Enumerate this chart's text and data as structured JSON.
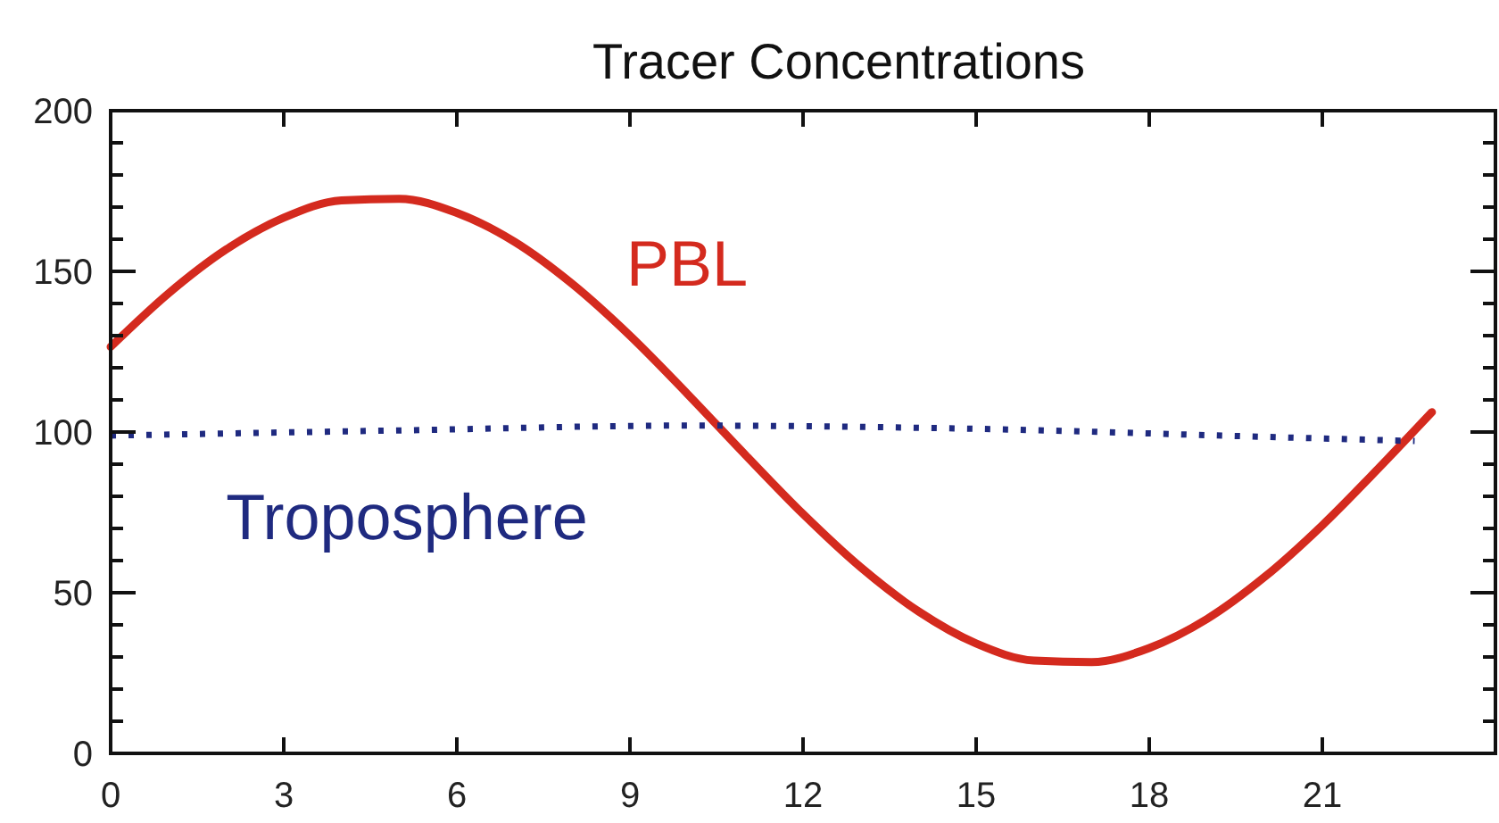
{
  "chart_data": {
    "type": "line",
    "title": "Tracer Concentrations",
    "xlim": [
      0,
      24
    ],
    "xticks": [
      0,
      3,
      6,
      9,
      12,
      15,
      18,
      21
    ],
    "ylim": [
      0,
      200
    ],
    "yticks": [
      0,
      {
        "value": 10,
        "label": null
      },
      {
        "value": 20,
        "label": null
      },
      {
        "value": 30,
        "label": null
      },
      {
        "value": 40,
        "label": null
      },
      50,
      {
        "value": 60,
        "label": null
      },
      {
        "value": 70,
        "label": null
      },
      {
        "value": 80,
        "label": null
      },
      {
        "value": 90,
        "label": null
      },
      100,
      {
        "value": 110,
        "label": null
      },
      {
        "value": 120,
        "label": null
      },
      {
        "value": 130,
        "label": null
      },
      {
        "value": 140,
        "label": null
      },
      150,
      {
        "value": 160,
        "label": null
      },
      {
        "value": 170,
        "label": null
      },
      {
        "value": 180,
        "label": null
      },
      {
        "value": 190,
        "label": null
      },
      200
    ],
    "grid": false,
    "series": [
      {
        "name": "PBL",
        "color": "#d42a1e",
        "line_style": "solid",
        "x": [
          0,
          1,
          2,
          3,
          4,
          5,
          6,
          7,
          8,
          9,
          10,
          11,
          12,
          13,
          14,
          15,
          16,
          17,
          18,
          19,
          20,
          21,
          22,
          22.9
        ],
        "values": [
          126.5,
          143.1,
          156.8,
          166.7,
          172.1,
          172.6,
          168.2,
          159.2,
          146.1,
          130.0,
          111.8,
          92.9,
          74.5,
          57.9,
          44.2,
          34.2,
          28.9,
          28.4,
          32.8,
          41.8,
          54.9,
          71.0,
          89.2,
          106.2
        ]
      },
      {
        "name": "Troposphere",
        "color": "#1f2a80",
        "line_style": "dotted",
        "x": [
          0,
          5,
          10,
          15,
          20,
          22.6
        ],
        "values": [
          98.9,
          100.5,
          102,
          101,
          98.5,
          97.2
        ]
      }
    ]
  }
}
